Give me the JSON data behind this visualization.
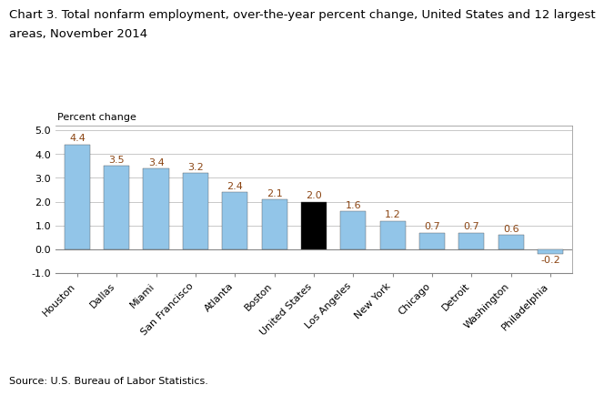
{
  "title_line1": "Chart 3. Total nonfarm employment, over-the-year percent change, United States and 12 largest",
  "title_line2": "areas, November 2014",
  "ylabel": "Percent change",
  "source": "Source: U.S. Bureau of Labor Statistics.",
  "categories": [
    "Houston",
    "Dallas",
    "Miami",
    "San Francisco",
    "Atlanta",
    "Boston",
    "United States",
    "Los Angeles",
    "New York",
    "Chicago",
    "Detroit",
    "Washington",
    "Philadelphia"
  ],
  "values": [
    4.4,
    3.5,
    3.4,
    3.2,
    2.4,
    2.1,
    2.0,
    1.6,
    1.2,
    0.7,
    0.7,
    0.6,
    -0.2
  ],
  "bar_colors": [
    "#92C5E8",
    "#92C5E8",
    "#92C5E8",
    "#92C5E8",
    "#92C5E8",
    "#92C5E8",
    "#000000",
    "#92C5E8",
    "#92C5E8",
    "#92C5E8",
    "#92C5E8",
    "#92C5E8",
    "#92C5E8"
  ],
  "value_label_color": "#8B4513",
  "ylim": [
    -1.0,
    5.2
  ],
  "yticks": [
    -1.0,
    0.0,
    1.0,
    2.0,
    3.0,
    4.0,
    5.0
  ],
  "ytick_labels": [
    "-1.0",
    "0.0",
    "1.0",
    "2.0",
    "3.0",
    "4.0",
    "5.0"
  ],
  "title_fontsize": 9.5,
  "ylabel_fontsize": 8,
  "tick_fontsize": 8,
  "value_fontsize": 8,
  "source_fontsize": 8,
  "background_color": "#ffffff",
  "grid_color": "#c8c8c8",
  "spine_color": "#888888"
}
